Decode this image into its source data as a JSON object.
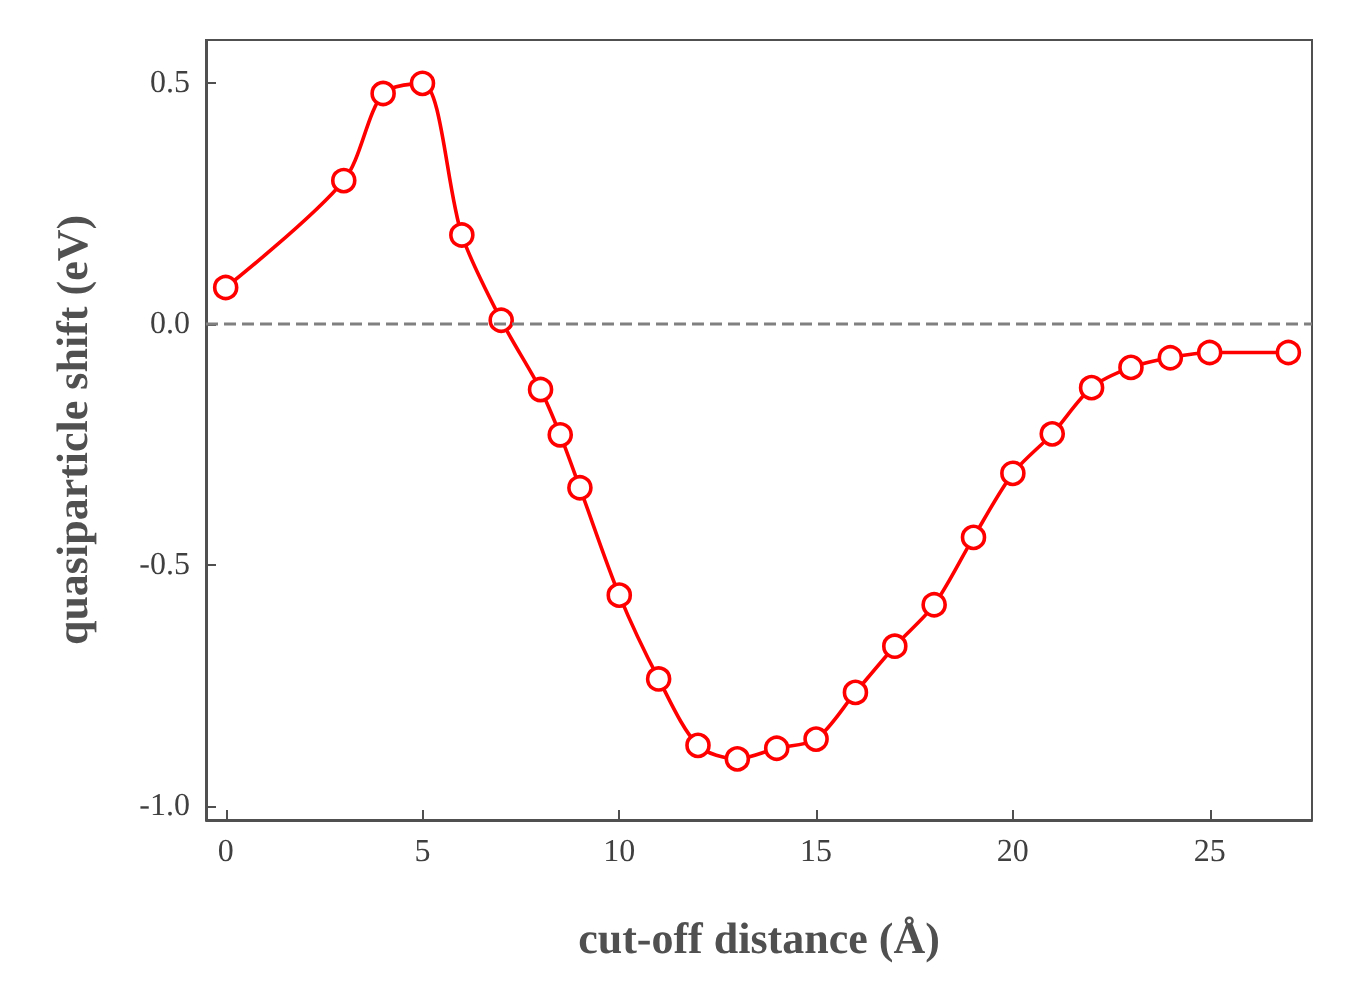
{
  "chart_data": {
    "type": "line",
    "xlabel": "cut-off distance (Å)",
    "ylabel": "quasiparticle shift (eV)",
    "x": [
      0,
      3,
      4,
      5,
      6,
      7,
      8,
      8.5,
      9,
      10,
      11,
      12,
      13,
      14,
      15,
      16,
      17,
      18,
      19,
      20,
      21,
      22,
      23,
      24,
      25,
      27
    ],
    "series": [
      {
        "color": "#ff0000",
        "values": [
          0.076,
          0.298,
          0.479,
          0.5,
          0.185,
          0.008,
          -0.136,
          -0.23,
          -0.34,
          -0.563,
          -0.737,
          -0.875,
          -0.903,
          -0.881,
          -0.862,
          -0.765,
          -0.669,
          -0.583,
          -0.443,
          -0.31,
          -0.228,
          -0.132,
          -0.09,
          -0.07,
          -0.059,
          -0.059
        ]
      }
    ],
    "xlim": [
      -0.5,
      27.6
    ],
    "xticks": [
      0,
      5,
      10,
      15,
      20,
      25
    ],
    "ylim": [
      -1.03,
      0.59
    ],
    "yticks": [
      {
        "value": -1,
        "label": "-1.0"
      },
      {
        "value": -0.5,
        "label": "-0.5"
      },
      {
        "value": 0,
        "label": "0.0"
      },
      {
        "value": 0.5,
        "label": "0.5"
      }
    ],
    "ref_lines": [
      {
        "axis": "y",
        "value": 0,
        "color": "#808080",
        "line_style": "dashed"
      }
    ],
    "marker": "circle",
    "line_style": "solid",
    "grid": false
  }
}
